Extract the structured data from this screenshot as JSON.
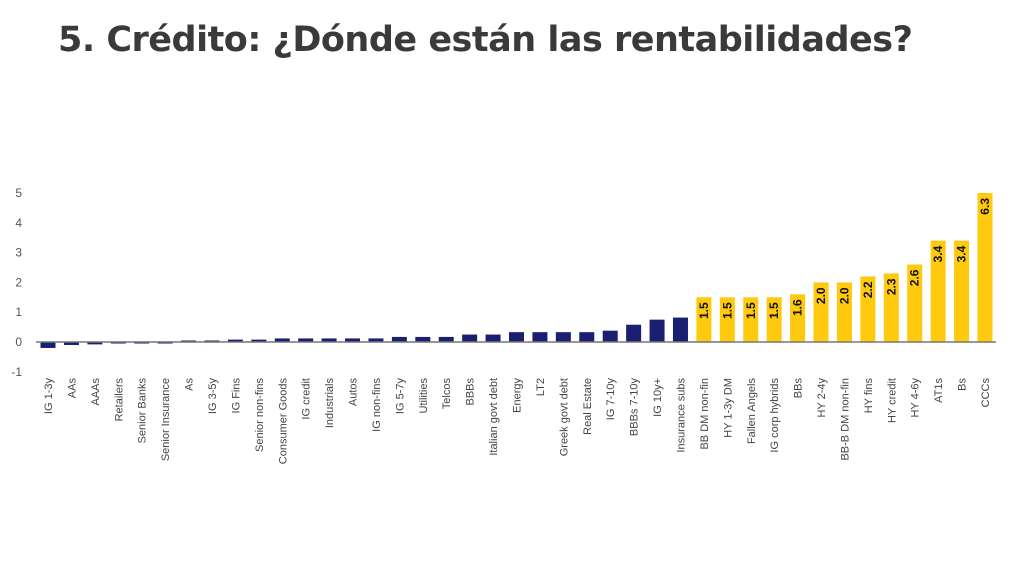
{
  "title": "5. Crédito: ¿Dónde están las rentabilidades?",
  "chart_data": {
    "type": "bar",
    "title": "",
    "xlabel": "",
    "ylabel": "",
    "ylim": [
      -1,
      5
    ],
    "yticks": [
      5,
      4,
      3,
      2,
      1,
      0,
      -1
    ],
    "grid": false,
    "colors": {
      "ig": "#1a1f71",
      "hy": "#ffc90e"
    },
    "categories": [
      "IG 1-3y",
      "AAs",
      "AAAs",
      "Retailers",
      "Senior Banks",
      "Senior Insurance",
      "As",
      "IG 3-5y",
      "IG Fins",
      "Senior non-fins",
      "Consumer Goods",
      "IG credit",
      "Industrials",
      "Autos",
      "IG non-fins",
      "IG 5-7y",
      "Utilities",
      "Telcos",
      "BBBs",
      "Italian govt debt",
      "Energy",
      "LT2",
      "Greek govt debt",
      "Real Estate",
      "IG 7-10y",
      "BBBs 7-10y",
      "IG 10y+",
      "Insurance subs",
      "BB DM non-fin",
      "HY 1-3y DM",
      "Fallen Angels",
      "IG corp hybrids",
      "BBs",
      "HY 2-4y",
      "BB-B DM non-fin",
      "HY fins",
      "HY credit",
      "HY 4-6y",
      "AT1s",
      "Bs",
      "CCCs"
    ],
    "values": [
      -0.2,
      -0.1,
      -0.08,
      -0.04,
      -0.04,
      -0.04,
      0.0,
      0.03,
      0.08,
      0.08,
      0.12,
      0.12,
      0.12,
      0.12,
      0.12,
      0.17,
      0.17,
      0.17,
      0.25,
      0.25,
      0.33,
      0.33,
      0.33,
      0.33,
      0.38,
      0.58,
      0.75,
      0.82,
      1.5,
      1.5,
      1.5,
      1.5,
      1.6,
      2.0,
      2.0,
      2.2,
      2.3,
      2.6,
      3.4,
      3.4,
      6.3
    ],
    "highlight_from_index": 28,
    "data_labels": [
      null,
      null,
      null,
      null,
      null,
      null,
      null,
      null,
      null,
      null,
      null,
      null,
      null,
      null,
      null,
      null,
      null,
      null,
      null,
      null,
      null,
      null,
      null,
      null,
      null,
      null,
      null,
      null,
      "1.5",
      "1.5",
      "1.5",
      "1.5",
      "1.6",
      "2.0",
      "2.0",
      "2.2",
      "2.3",
      "2.6",
      "3.4",
      "3.4",
      "6.3"
    ]
  }
}
